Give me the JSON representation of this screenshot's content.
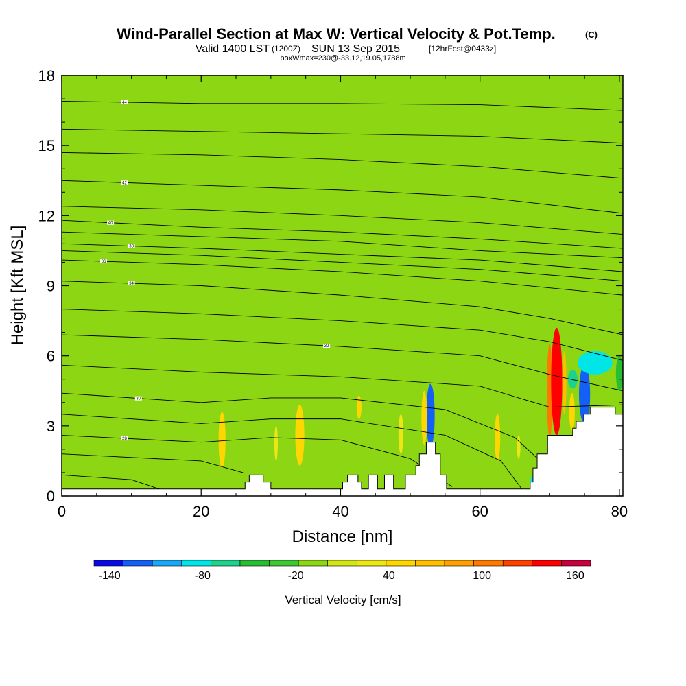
{
  "chart_data": {
    "type": "heatmap",
    "title": "Wind-Parallel Section at Max W: Vertical Velocity & Pot.Temp.",
    "title_mark": "(C)",
    "subtitle": {
      "prefix": "Valid 1400 LST",
      "utc": "(1200Z)",
      "date": "SUN 13 Sep 2015",
      "forecast": "[12hrFcst@0433z]"
    },
    "subsubtitle": "boxWmax=230@-33.12,19.05,1788m",
    "xlabel": "Distance [nm]",
    "ylabel": "Height [Kft MSL]",
    "xlim": [
      0,
      80.5
    ],
    "ylim": [
      0,
      18
    ],
    "x_ticks": [
      "0",
      "20",
      "40",
      "60",
      "80"
    ],
    "y_ticks": [
      "0",
      "3",
      "6",
      "9",
      "12",
      "15",
      "18"
    ],
    "grid": false,
    "colorbar": {
      "label": "Vertical Velocity [cm/s]",
      "range": [
        -150,
        170
      ],
      "tick_labels": [
        "-140",
        "-80",
        "-20",
        "40",
        "100",
        "160"
      ],
      "colors": [
        "#0a0ae6",
        "#1460f5",
        "#18a8f5",
        "#00e6e6",
        "#1ed28c",
        "#28be32",
        "#3cc832",
        "#8cd614",
        "#d2e614",
        "#ebe614",
        "#ffd700",
        "#ffbe00",
        "#ffa000",
        "#ff7800",
        "#ff4000",
        "#ff0000",
        "#c8003c"
      ]
    },
    "field_background": "#8cd614",
    "velocity_features": [
      {
        "x0": 0,
        "x1": 80.5,
        "y0": 0,
        "y1": 18,
        "w": 0
      },
      {
        "x0": 3,
        "x1": 12,
        "y0": 11,
        "y1": 18,
        "w": -15
      },
      {
        "x0": 10,
        "x1": 15,
        "y0": 13.5,
        "y1": 18,
        "w": -15
      },
      {
        "x0": 18,
        "x1": 28,
        "y0": 15,
        "y1": 18,
        "w": -12
      },
      {
        "x0": 30,
        "x1": 34,
        "y0": 12.5,
        "y1": 18,
        "w": -15
      },
      {
        "x0": 38,
        "x1": 47,
        "y0": 15,
        "y1": 18,
        "w": -15
      },
      {
        "x0": 52,
        "x1": 58,
        "y0": 14,
        "y1": 18,
        "w": -15
      },
      {
        "x0": 64,
        "x1": 76,
        "y0": 11,
        "y1": 18,
        "w": -15
      },
      {
        "x0": 0,
        "x1": 6,
        "y0": 0.3,
        "y1": 8,
        "w": -15
      },
      {
        "x0": 12,
        "x1": 21,
        "y0": 0.3,
        "y1": 5.5,
        "w": -15
      },
      {
        "x0": 24,
        "x1": 31,
        "y0": 0.3,
        "y1": 4,
        "w": -12
      },
      {
        "x0": 43,
        "x1": 52,
        "y0": 0.3,
        "y1": 5,
        "w": -15
      },
      {
        "x0": 56,
        "x1": 67,
        "y0": 0.3,
        "y1": 6,
        "w": -15
      },
      {
        "x0": 22.5,
        "x1": 23.5,
        "y0": 1.2,
        "y1": 3.6,
        "w": 40
      },
      {
        "x0": 33.5,
        "x1": 34.8,
        "y0": 1.3,
        "y1": 3.9,
        "w": 50
      },
      {
        "x0": 30.5,
        "x1": 31,
        "y0": 1.5,
        "y1": 3,
        "w": 35
      },
      {
        "x0": 42.3,
        "x1": 43,
        "y0": 3.3,
        "y1": 4.3,
        "w": 45
      },
      {
        "x0": 48.3,
        "x1": 49,
        "y0": 1.8,
        "y1": 3.5,
        "w": 35
      },
      {
        "x0": 52.3,
        "x1": 53.5,
        "y0": 2.1,
        "y1": 4.8,
        "w": -125
      },
      {
        "x0": 51.6,
        "x1": 52.4,
        "y0": 2.2,
        "y1": 4.5,
        "w": 40
      },
      {
        "x0": 62.1,
        "x1": 62.9,
        "y0": 1.5,
        "y1": 3.5,
        "w": 40
      },
      {
        "x0": 65.3,
        "x1": 65.8,
        "y0": 1.6,
        "y1": 2.6,
        "w": 35
      },
      {
        "x0": 69.6,
        "x1": 70.4,
        "y0": 2.5,
        "y1": 6.5,
        "w": 100
      },
      {
        "x0": 70.2,
        "x1": 71.8,
        "y0": 2.6,
        "y1": 7.2,
        "w": 150
      },
      {
        "x0": 71.8,
        "x1": 72.4,
        "y0": 3.5,
        "y1": 6.2,
        "w": 70
      },
      {
        "x0": 72.6,
        "x1": 74,
        "y0": 4.6,
        "y1": 5.4,
        "w": -70
      },
      {
        "x0": 74.2,
        "x1": 75.8,
        "y0": 3.1,
        "y1": 5.6,
        "w": -130
      },
      {
        "x0": 74,
        "x1": 79,
        "y0": 5.2,
        "y1": 6.2,
        "w": -85
      },
      {
        "x0": 72.8,
        "x1": 73.6,
        "y0": 2.8,
        "y1": 4.4,
        "w": 45
      },
      {
        "x0": 79.5,
        "x1": 80.5,
        "y0": 4.5,
        "y1": 6,
        "w": -40
      },
      {
        "x0": 67.2,
        "x1": 68.6,
        "y0": 0.3,
        "y1": 0.9,
        "w": -80
      }
    ],
    "terrain_kft": [
      {
        "x": 0,
        "y": 0.3
      },
      {
        "x": 26.3,
        "y": 0.3
      },
      {
        "x": 26.3,
        "y": 0.6
      },
      {
        "x": 26.9,
        "y": 0.6
      },
      {
        "x": 26.9,
        "y": 0.9
      },
      {
        "x": 28.9,
        "y": 0.9
      },
      {
        "x": 28.9,
        "y": 0.6
      },
      {
        "x": 30,
        "y": 0.6
      },
      {
        "x": 30,
        "y": 0.3
      },
      {
        "x": 40.3,
        "y": 0.3
      },
      {
        "x": 40.3,
        "y": 0.6
      },
      {
        "x": 41,
        "y": 0.6
      },
      {
        "x": 41,
        "y": 0.9
      },
      {
        "x": 42.5,
        "y": 0.9
      },
      {
        "x": 42.5,
        "y": 0.6
      },
      {
        "x": 43,
        "y": 0.6
      },
      {
        "x": 43,
        "y": 0.3
      },
      {
        "x": 44,
        "y": 0.3
      },
      {
        "x": 44,
        "y": 0.9
      },
      {
        "x": 45.3,
        "y": 0.9
      },
      {
        "x": 45.3,
        "y": 0.3
      },
      {
        "x": 46.3,
        "y": 0.3
      },
      {
        "x": 46.3,
        "y": 0.9
      },
      {
        "x": 47.6,
        "y": 0.9
      },
      {
        "x": 47.6,
        "y": 0.3
      },
      {
        "x": 49.3,
        "y": 0.3
      },
      {
        "x": 49.3,
        "y": 0.9
      },
      {
        "x": 50.8,
        "y": 0.9
      },
      {
        "x": 50.8,
        "y": 1.3
      },
      {
        "x": 51.3,
        "y": 1.3
      },
      {
        "x": 51.3,
        "y": 1.8
      },
      {
        "x": 52.3,
        "y": 1.8
      },
      {
        "x": 52.3,
        "y": 2.3
      },
      {
        "x": 53.6,
        "y": 2.3
      },
      {
        "x": 53.6,
        "y": 1.8
      },
      {
        "x": 54.3,
        "y": 1.8
      },
      {
        "x": 54.3,
        "y": 0.9
      },
      {
        "x": 55.2,
        "y": 0.9
      },
      {
        "x": 55.2,
        "y": 0.3
      },
      {
        "x": 67.2,
        "y": 0.3
      },
      {
        "x": 67.2,
        "y": 0.6
      },
      {
        "x": 67.6,
        "y": 0.6
      },
      {
        "x": 67.6,
        "y": 1.2
      },
      {
        "x": 68.2,
        "y": 1.2
      },
      {
        "x": 68.2,
        "y": 1.8
      },
      {
        "x": 69.7,
        "y": 1.8
      },
      {
        "x": 69.7,
        "y": 2.6
      },
      {
        "x": 73.3,
        "y": 2.6
      },
      {
        "x": 73.3,
        "y": 2.9
      },
      {
        "x": 73.8,
        "y": 2.9
      },
      {
        "x": 73.8,
        "y": 3.2
      },
      {
        "x": 74.9,
        "y": 3.2
      },
      {
        "x": 74.9,
        "y": 3.5
      },
      {
        "x": 75.8,
        "y": 3.5
      },
      {
        "x": 75.8,
        "y": 3.8
      },
      {
        "x": 79.4,
        "y": 3.8
      },
      {
        "x": 79.4,
        "y": 3.5
      },
      {
        "x": 80.5,
        "y": 3.5
      }
    ],
    "theta_contours": [
      {
        "label": "44",
        "label_x": 9,
        "points": [
          [
            0,
            16.9
          ],
          [
            20,
            16.8
          ],
          [
            40,
            16.8
          ],
          [
            60,
            16.75
          ],
          [
            80.5,
            16.5
          ]
        ]
      },
      {
        "label": "",
        "label_x": null,
        "points": [
          [
            0,
            15.7
          ],
          [
            20,
            15.6
          ],
          [
            40,
            15.5
          ],
          [
            60,
            15.4
          ],
          [
            80.5,
            15.1
          ]
        ]
      },
      {
        "label": "",
        "label_x": null,
        "points": [
          [
            0,
            14.7
          ],
          [
            20,
            14.6
          ],
          [
            40,
            14.4
          ],
          [
            60,
            14.1
          ],
          [
            80.5,
            13.6
          ]
        ]
      },
      {
        "label": "42",
        "label_x": 9,
        "points": [
          [
            0,
            13.5
          ],
          [
            20,
            13.3
          ],
          [
            40,
            13.1
          ],
          [
            60,
            12.8
          ],
          [
            80.5,
            12.1
          ]
        ]
      },
      {
        "label": "",
        "label_x": null,
        "points": [
          [
            0,
            12.4
          ],
          [
            20,
            12.25
          ],
          [
            40,
            12.0
          ],
          [
            60,
            11.7
          ],
          [
            80.5,
            11.2
          ]
        ]
      },
      {
        "label": "40",
        "label_x": 7,
        "points": [
          [
            0,
            11.8
          ],
          [
            20,
            11.5
          ],
          [
            40,
            11.3
          ],
          [
            60,
            11.0
          ],
          [
            80.5,
            10.6
          ]
        ]
      },
      {
        "label": "",
        "label_x": null,
        "points": [
          [
            0,
            11.3
          ],
          [
            20,
            11.1
          ],
          [
            40,
            10.9
          ],
          [
            60,
            10.5
          ],
          [
            80.5,
            10.2
          ]
        ]
      },
      {
        "label": "38",
        "label_x": 10,
        "points": [
          [
            0,
            10.8
          ],
          [
            20,
            10.6
          ],
          [
            40,
            10.35
          ],
          [
            60,
            10.1
          ],
          [
            80.5,
            9.6
          ]
        ]
      },
      {
        "label": "",
        "label_x": null,
        "points": [
          [
            0,
            10.5
          ],
          [
            20,
            10.3
          ],
          [
            40,
            10.0
          ],
          [
            60,
            9.7
          ],
          [
            80.5,
            9.2
          ]
        ]
      },
      {
        "label": "36",
        "label_x": 6,
        "points": [
          [
            0,
            10.1
          ],
          [
            20,
            9.9
          ],
          [
            40,
            9.6
          ],
          [
            60,
            9.2
          ],
          [
            80.5,
            8.6
          ]
        ]
      },
      {
        "label": "34",
        "label_x": 10,
        "points": [
          [
            0,
            9.2
          ],
          [
            20,
            9.0
          ],
          [
            40,
            8.6
          ],
          [
            60,
            8.1
          ],
          [
            70,
            7.6
          ],
          [
            80.5,
            6.9
          ]
        ]
      },
      {
        "label": "",
        "label_x": null,
        "points": [
          [
            0,
            8.0
          ],
          [
            20,
            7.8
          ],
          [
            40,
            7.5
          ],
          [
            60,
            7.1
          ],
          [
            70,
            6.6
          ],
          [
            80.5,
            5.8
          ]
        ]
      },
      {
        "label": "32",
        "label_x": 38,
        "points": [
          [
            0,
            6.9
          ],
          [
            20,
            6.7
          ],
          [
            40,
            6.4
          ],
          [
            60,
            6.0
          ],
          [
            70,
            5.2
          ],
          [
            80.5,
            4.5
          ]
        ]
      },
      {
        "label": "",
        "label_x": null,
        "points": [
          [
            0,
            5.6
          ],
          [
            20,
            5.3
          ],
          [
            40,
            5.1
          ],
          [
            60,
            4.7
          ],
          [
            70,
            3.8
          ],
          [
            80.5,
            3.9
          ]
        ]
      },
      {
        "label": "30",
        "label_x": 11,
        "points": [
          [
            0,
            4.4
          ],
          [
            20,
            4.0
          ],
          [
            30,
            4.2
          ],
          [
            40,
            4.2
          ],
          [
            55,
            3.7
          ],
          [
            65,
            2.5
          ],
          [
            69,
            1.4
          ]
        ]
      },
      {
        "label": "",
        "label_x": null,
        "points": [
          [
            0,
            3.5
          ],
          [
            20,
            3.1
          ],
          [
            30,
            3.3
          ],
          [
            40,
            3.3
          ],
          [
            55,
            2.6
          ],
          [
            63,
            1.5
          ],
          [
            66,
            0.3
          ]
        ]
      },
      {
        "label": "28",
        "label_x": 9,
        "points": [
          [
            0,
            2.6
          ],
          [
            20,
            2.3
          ],
          [
            30,
            2.5
          ],
          [
            40,
            2.4
          ],
          [
            50,
            1.6
          ],
          [
            56,
            0.4
          ]
        ]
      },
      {
        "label": "",
        "label_x": null,
        "points": [
          [
            0,
            1.8
          ],
          [
            20,
            1.5
          ],
          [
            26,
            1.0
          ]
        ]
      },
      {
        "label": "",
        "label_x": null,
        "points": [
          [
            0,
            0.9
          ],
          [
            10,
            0.7
          ],
          [
            14,
            0.3
          ]
        ]
      }
    ]
  }
}
